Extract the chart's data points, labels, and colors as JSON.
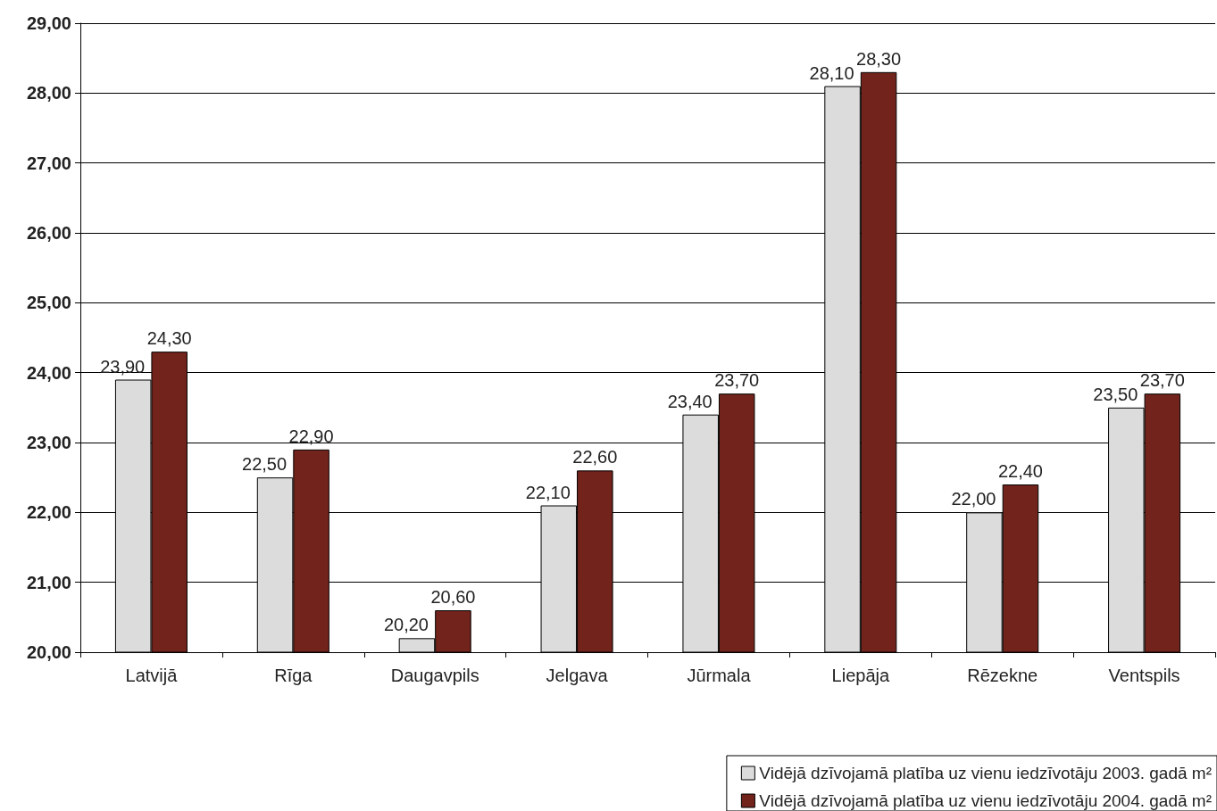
{
  "chart_data": {
    "type": "bar",
    "categories": [
      "Latvijā",
      "Rīga",
      "Daugavpils",
      "Jelgava",
      "Jūrmala",
      "Liepāja",
      "Rēzekne",
      "Ventspils"
    ],
    "series": [
      {
        "name": "Vidējā dzīvojamā platība uz vienu iedzīvotāju 2003. gadā m²",
        "color": "#dcdcdc",
        "values": [
          23.9,
          22.5,
          20.2,
          22.1,
          23.4,
          28.1,
          22.0,
          23.5
        ],
        "value_labels": [
          "23,90",
          "22,50",
          "20,20",
          "22,10",
          "23,40",
          "28,10",
          "22,00",
          "23,50"
        ]
      },
      {
        "name": "Vidējā dzīvojamā platība uz vienu iedzīvotāju 2004. gadā m²",
        "color": "#72231b",
        "values": [
          24.3,
          22.9,
          20.6,
          22.6,
          23.7,
          28.3,
          22.4,
          23.7
        ],
        "value_labels": [
          "24,30",
          "22,90",
          "20,60",
          "22,60",
          "23,70",
          "28,30",
          "22,40",
          "23,70"
        ]
      }
    ],
    "ylim": [
      20,
      29
    ],
    "yticks": [
      {
        "value": 20,
        "label": "20,00"
      },
      {
        "value": 21,
        "label": "21,00"
      },
      {
        "value": 22,
        "label": "22,00"
      },
      {
        "value": 23,
        "label": "23,00"
      },
      {
        "value": 24,
        "label": "24,00"
      },
      {
        "value": 25,
        "label": "25,00"
      },
      {
        "value": 26,
        "label": "26,00"
      },
      {
        "value": 27,
        "label": "27,00"
      },
      {
        "value": 28,
        "label": "28,00"
      },
      {
        "value": 29,
        "label": "29,00"
      }
    ],
    "grid": "y",
    "legend": "bottom right"
  }
}
